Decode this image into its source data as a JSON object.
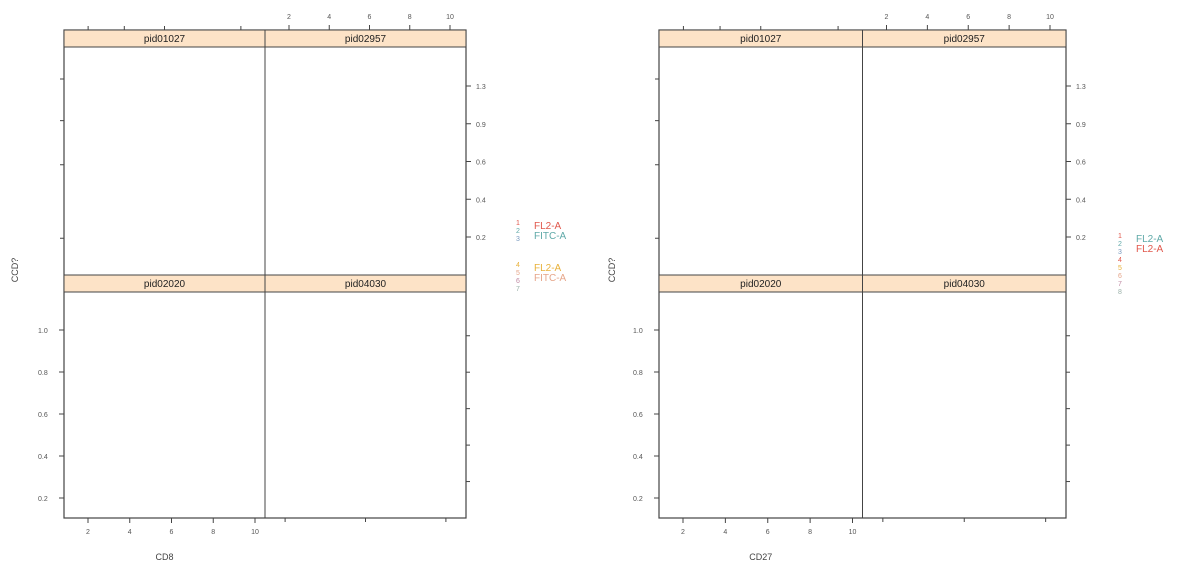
{
  "chart_data": [
    {
      "type": "scatter",
      "layout": "2x2 lattice",
      "panels": [
        "pid01027",
        "pid02957",
        "pid02020",
        "pid04030"
      ],
      "xlabel": "CD8",
      "ylabel": "CCD?",
      "x_ticks_bottom": [
        "2",
        "4",
        "6",
        "8",
        "10"
      ],
      "x_ticks_top": [
        "2",
        "4",
        "6",
        "8",
        "10"
      ],
      "y_ticks_left": [
        "1.0",
        "0.8",
        "0.6",
        "0.4",
        "0.2"
      ],
      "y_ticks_right": [
        "1.3",
        "0.9",
        "0.6",
        "0.4",
        "0.2"
      ],
      "legend_placement": "right",
      "legend": {
        "groups": [
          {
            "numbers": [
              "1",
              "2",
              "3"
            ],
            "entries": [
              {
                "label": "FL2-A",
                "color": "#e0574b"
              },
              {
                "label": "FITC-A",
                "color": "#5fa9a8"
              }
            ]
          },
          {
            "numbers": [
              "4",
              "5",
              "6",
              "7"
            ],
            "entries": [
              {
                "label": "FL2-A",
                "color": "#e8b13a"
              },
              {
                "label": "FITC-A",
                "color": "#e6a68a"
              }
            ]
          }
        ]
      },
      "series": []
    },
    {
      "type": "scatter",
      "layout": "2x2 lattice",
      "panels": [
        "pid01027",
        "pid02957",
        "pid02020",
        "pid04030"
      ],
      "xlabel": "CD27",
      "ylabel": "CCD?",
      "x_ticks_bottom": [
        "2",
        "4",
        "6",
        "8",
        "10"
      ],
      "x_ticks_top": [
        "2",
        "4",
        "6",
        "8",
        "10"
      ],
      "y_ticks_left": [
        "1.0",
        "0.8",
        "0.6",
        "0.4",
        "0.2"
      ],
      "y_ticks_right": [
        "1.3",
        "0.9",
        "0.6",
        "0.4",
        "0.2"
      ],
      "legend_placement": "right",
      "legend": {
        "groups": [
          {
            "numbers": [
              "1",
              "2",
              "3",
              "4",
              "5",
              "6",
              "7",
              "8"
            ],
            "entries": [
              {
                "label": "FL2-A",
                "color": "#5fa9a8"
              },
              {
                "label": "FL2-A",
                "color": "#e0574b"
              }
            ]
          }
        ]
      },
      "series": []
    }
  ]
}
